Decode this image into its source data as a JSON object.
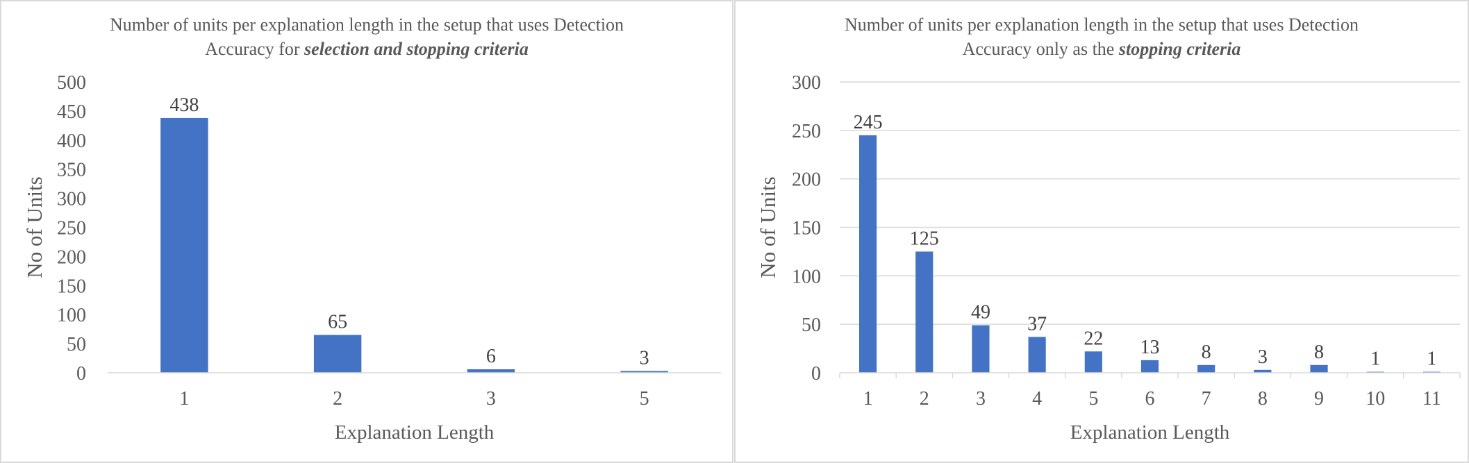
{
  "chart_data": [
    {
      "type": "bar",
      "title": "Number of units per explanation length in the setup that uses Detection",
      "title_line2": "Accuracy  for ",
      "title_emphasis": "selection and stopping criteria",
      "xlabel": "Explanation  Length",
      "ylabel": "No of Units",
      "categories": [
        "1",
        "2",
        "3",
        "5"
      ],
      "values": [
        438,
        65,
        6,
        3
      ],
      "data_labels": [
        "438",
        "65",
        "6",
        "3"
      ],
      "ylim": [
        0,
        500
      ],
      "yticks": [
        "0",
        "50",
        "100",
        "150",
        "200",
        "250",
        "300",
        "350",
        "400",
        "450",
        "500"
      ],
      "grid": false,
      "bar_color": "#4472c4"
    },
    {
      "type": "bar",
      "title": "Number of units per explanation  length  in the setup that uses Detection",
      "title_line2": "Accuracy  only as the ",
      "title_emphasis": "stopping criteria",
      "xlabel": "Explanation  Length",
      "ylabel": "No of Units",
      "categories": [
        "1",
        "2",
        "3",
        "4",
        "5",
        "6",
        "7",
        "8",
        "9",
        "10",
        "11"
      ],
      "values": [
        245,
        125,
        49,
        37,
        22,
        13,
        8,
        3,
        8,
        1,
        1
      ],
      "data_labels": [
        "245",
        "125",
        "49",
        "37",
        "22",
        "13",
        "8",
        "3",
        "8",
        "1",
        "1"
      ],
      "ylim": [
        0,
        300
      ],
      "yticks": [
        "0",
        "50",
        "100",
        "150",
        "200",
        "250",
        "300"
      ],
      "grid": true,
      "bar_color": "#4472c4"
    }
  ]
}
